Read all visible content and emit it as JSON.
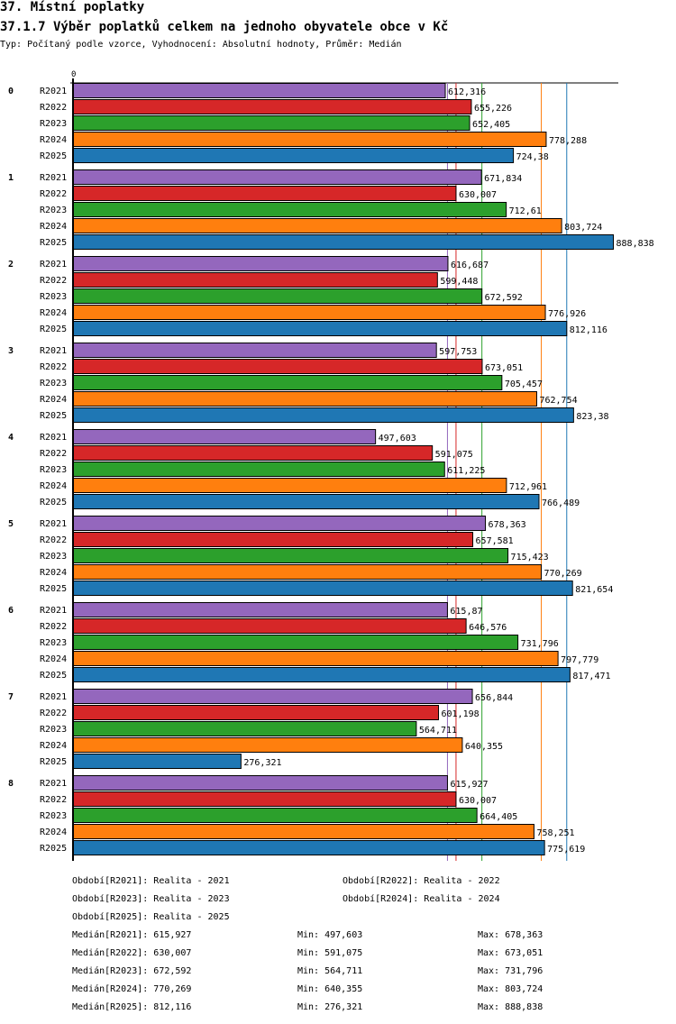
{
  "header": {
    "title": "37. Místní poplatky",
    "subtitle": "37.1.7 Výběr poplatků celkem na jednoho obyvatele obce v  Kč",
    "meta": "Typ: Počítaný podle vzorce, Vyhodnocení: Absolutní hodnoty, Průměr: Medián"
  },
  "chart_data": {
    "type": "bar",
    "orientation": "horizontal",
    "title": "37.1.7 Výběr poplatků celkem na jednoho obyvatele obce v  Kč",
    "axis_tick_label": "0",
    "xlim": [
      0,
      900
    ],
    "categories": [
      "0",
      "1",
      "2",
      "3",
      "4",
      "5",
      "6",
      "7",
      "8"
    ],
    "series": [
      {
        "name": "R2021",
        "color": "#9467bd",
        "values": [
          612.316,
          671.834,
          616.687,
          597.753,
          497.603,
          678.363,
          615.87,
          656.844,
          615.927
        ],
        "labels": [
          "612,316",
          "671,834",
          "616,687",
          "597,753",
          "497,603",
          "678,363",
          "615,87",
          "656,844",
          "615,927"
        ]
      },
      {
        "name": "R2022",
        "color": "#d62728",
        "values": [
          655.226,
          630.007,
          599.448,
          673.051,
          591.075,
          657.581,
          646.576,
          601.198,
          630.007
        ],
        "labels": [
          "655,226",
          "630,007",
          "599,448",
          "673,051",
          "591,075",
          "657,581",
          "646,576",
          "601,198",
          "630,007"
        ]
      },
      {
        "name": "R2023",
        "color": "#2ca02c",
        "values": [
          652.405,
          712.61,
          672.592,
          705.457,
          611.225,
          715.423,
          731.796,
          564.711,
          664.405
        ],
        "labels": [
          "652,405",
          "712,61",
          "672,592",
          "705,457",
          "611,225",
          "715,423",
          "731,796",
          "564,711",
          "664,405"
        ]
      },
      {
        "name": "R2024",
        "color": "#ff7f0e",
        "values": [
          778.288,
          803.724,
          776.926,
          762.754,
          712.961,
          770.269,
          797.779,
          640.355,
          758.251
        ],
        "labels": [
          "778,288",
          "803,724",
          "776,926",
          "762,754",
          "712,961",
          "770,269",
          "797,779",
          "640,355",
          "758,251"
        ]
      },
      {
        "name": "R2025",
        "color": "#1f77b4",
        "values": [
          724.38,
          888.838,
          812.116,
          823.38,
          766.489,
          821.654,
          817.471,
          276.321,
          775.619
        ],
        "labels": [
          "724,38",
          "888,838",
          "812,116",
          "823,38",
          "766,489",
          "821,654",
          "817,471",
          "276,321",
          "775,619"
        ]
      }
    ],
    "medians": [
      615.927,
      630.007,
      672.592,
      770.269,
      812.116
    ],
    "legend": [
      "Období[R2021]: Realita - 2021",
      "Období[R2022]: Realita - 2022",
      "Období[R2023]: Realita - 2023",
      "Období[R2024]: Realita - 2024",
      "Období[R2025]: Realita - 2025"
    ],
    "stats": [
      {
        "median": "Medián[R2021]: 615,927",
        "min": "Min: 497,603",
        "max": "Max: 678,363"
      },
      {
        "median": "Medián[R2022]: 630,007",
        "min": "Min: 591,075",
        "max": "Max: 673,051"
      },
      {
        "median": "Medián[R2023]: 672,592",
        "min": "Min: 564,711",
        "max": "Max: 731,796"
      },
      {
        "median": "Medián[R2024]: 770,269",
        "min": "Min: 640,355",
        "max": "Max: 803,724"
      },
      {
        "median": "Medián[R2025]: 812,116",
        "min": "Min: 276,321",
        "max": "Max: 888,838"
      }
    ]
  }
}
